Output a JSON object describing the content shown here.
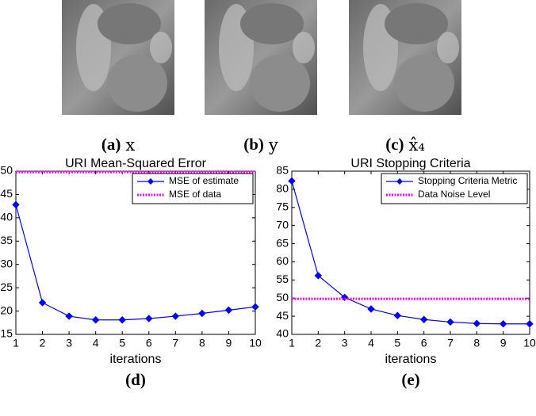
{
  "images": [
    {
      "label": "(a)",
      "symbol": "x"
    },
    {
      "label": "(b)",
      "symbol": "y"
    },
    {
      "label": "(c)",
      "symbol": "x̂₄"
    }
  ],
  "chart_data": [
    {
      "type": "line",
      "title": "URI Mean-Squared Error",
      "x_label": "iterations",
      "caption": "(d)",
      "x": [
        1,
        2,
        3,
        4,
        5,
        6,
        7,
        8,
        9,
        10
      ],
      "xlim": [
        1,
        10
      ],
      "xticks": [
        1,
        2,
        3,
        4,
        5,
        6,
        7,
        8,
        9,
        10
      ],
      "ylim": [
        15,
        50
      ],
      "yticks": [
        15,
        20,
        25,
        30,
        35,
        40,
        45,
        50
      ],
      "legend": "upper right",
      "series": [
        {
          "name": "MSE of estimate",
          "color": "#0000ff",
          "marker": "diamond",
          "dash": "solid",
          "values": [
            42.8,
            21.8,
            18.9,
            18.1,
            18.1,
            18.4,
            18.9,
            19.5,
            20.2,
            20.9
          ]
        },
        {
          "name": "MSE of data",
          "color": "#ff00ff",
          "marker": "none",
          "dash": "dotted",
          "values": [
            49.8,
            49.8,
            49.8,
            49.8,
            49.8,
            49.8,
            49.8,
            49.8,
            49.8,
            49.8
          ]
        }
      ]
    },
    {
      "type": "line",
      "title": "URI Stopping Criteria",
      "x_label": "iterations",
      "caption": "(e)",
      "x": [
        1,
        2,
        3,
        4,
        5,
        6,
        7,
        8,
        9,
        10
      ],
      "xlim": [
        1,
        10
      ],
      "xticks": [
        1,
        2,
        3,
        4,
        5,
        6,
        7,
        8,
        9,
        10
      ],
      "ylim": [
        40,
        85
      ],
      "yticks": [
        40,
        45,
        50,
        55,
        60,
        65,
        70,
        75,
        80,
        85
      ],
      "legend": "upper right",
      "series": [
        {
          "name": "Stopping Criteria Metric",
          "color": "#0000ff",
          "marker": "diamond",
          "dash": "solid",
          "values": [
            82.3,
            56.2,
            50.2,
            47.0,
            45.2,
            44.1,
            43.4,
            43.0,
            42.9,
            42.9
          ]
        },
        {
          "name": "Data Noise Level",
          "color": "#ff00ff",
          "marker": "none",
          "dash": "dotted",
          "values": [
            49.8,
            49.8,
            49.8,
            49.8,
            49.8,
            49.8,
            49.8,
            49.8,
            49.8,
            49.8
          ]
        }
      ]
    }
  ]
}
